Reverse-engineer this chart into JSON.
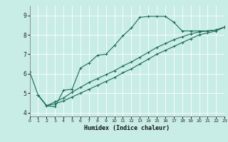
{
  "title": "",
  "xlabel": "Humidex (Indice chaleur)",
  "ylabel": "",
  "bg_color": "#c8ece6",
  "line_color": "#1a6b5a",
  "grid_color": "#ffffff",
  "xlim": [
    0,
    23
  ],
  "ylim": [
    3.8,
    9.5
  ],
  "xticks": [
    0,
    1,
    2,
    3,
    4,
    5,
    6,
    7,
    8,
    9,
    10,
    11,
    12,
    13,
    14,
    15,
    16,
    17,
    18,
    19,
    20,
    21,
    22,
    23
  ],
  "yticks": [
    4,
    5,
    6,
    7,
    8,
    9
  ],
  "curve1_x": [
    0,
    1,
    2,
    3,
    4,
    5,
    6,
    7,
    8,
    9,
    10,
    11,
    12,
    13,
    14,
    15,
    16,
    17,
    18,
    19,
    20,
    21,
    22,
    23
  ],
  "curve1_y": [
    6.1,
    4.9,
    4.35,
    4.3,
    5.15,
    5.2,
    6.3,
    6.55,
    6.95,
    7.0,
    7.45,
    7.95,
    8.35,
    8.9,
    8.95,
    8.95,
    8.95,
    8.65,
    8.2,
    8.2,
    8.2,
    8.2,
    8.25,
    8.4
  ],
  "line2_x": [
    1,
    2,
    3,
    4,
    5,
    6,
    7,
    8,
    9,
    10,
    11,
    12,
    13,
    14,
    15,
    16,
    17,
    18,
    19,
    20,
    21,
    22,
    23
  ],
  "line2_y": [
    4.9,
    4.35,
    4.55,
    4.75,
    5.05,
    5.3,
    5.55,
    5.75,
    5.95,
    6.15,
    6.4,
    6.6,
    6.85,
    7.1,
    7.35,
    7.55,
    7.75,
    7.9,
    8.05,
    8.15,
    8.2,
    8.25,
    8.4
  ],
  "line3_x": [
    1,
    2,
    3,
    4,
    5,
    6,
    7,
    8,
    9,
    10,
    11,
    12,
    13,
    14,
    15,
    16,
    17,
    18,
    19,
    20,
    21,
    22,
    23
  ],
  "line3_y": [
    4.9,
    4.35,
    4.45,
    4.6,
    4.8,
    5.0,
    5.2,
    5.4,
    5.6,
    5.8,
    6.05,
    6.25,
    6.5,
    6.75,
    7.0,
    7.2,
    7.4,
    7.6,
    7.8,
    8.0,
    8.1,
    8.2,
    8.4
  ]
}
